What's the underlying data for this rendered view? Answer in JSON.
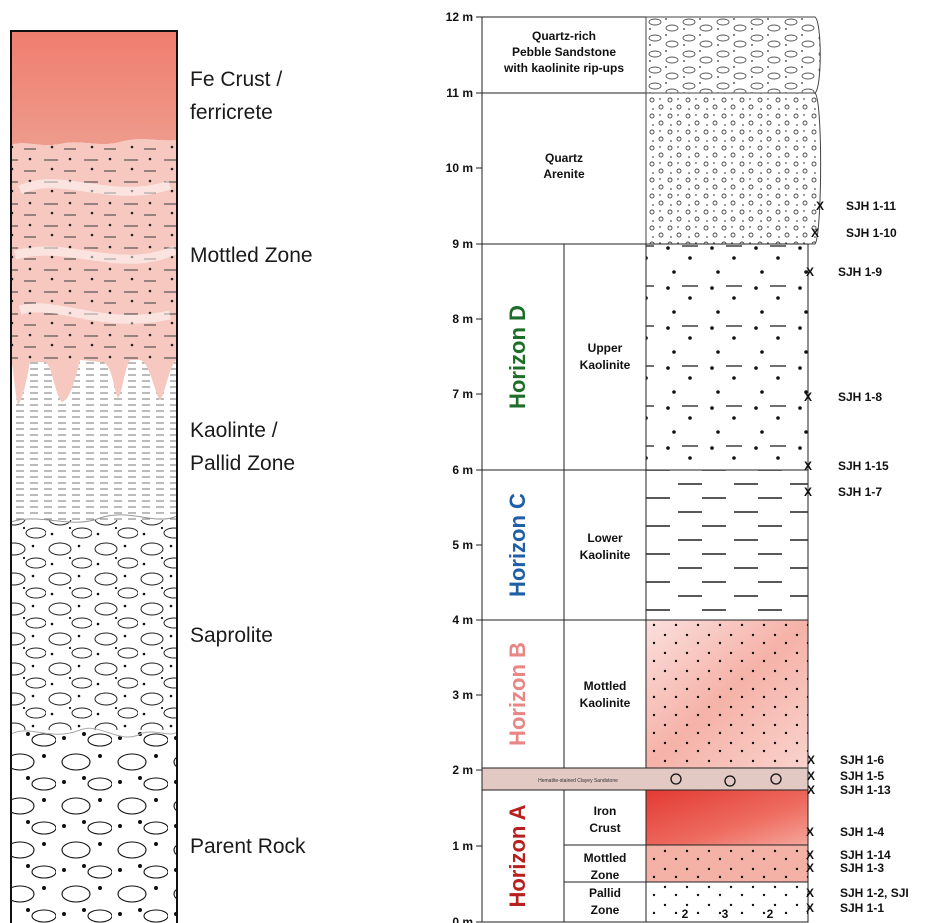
{
  "profile": {
    "zones": [
      {
        "label": "Fe Crust /\nferricrete"
      },
      {
        "label": "Mottled Zone"
      },
      {
        "label": "Kaolinte /\nPallid Zone"
      },
      {
        "label": "Saprolite"
      },
      {
        "label": "Parent Rock"
      }
    ]
  },
  "column": {
    "depth_ticks": [
      "0 m",
      "1 m",
      "2 m",
      "3 m",
      "4 m",
      "5 m",
      "6 m",
      "7 m",
      "8 m",
      "9 m",
      "10 m",
      "11 m",
      "12 m"
    ],
    "top_units": [
      {
        "label": "Quartz-rich\nPebble Sandstone\nwith kaolinite rip-ups"
      },
      {
        "label": "Quartz\nArenite"
      }
    ],
    "horizons": [
      {
        "label": "Horizon D",
        "color": "#1e6e2a"
      },
      {
        "label": "Horizon C",
        "color": "#1f5fa8"
      },
      {
        "label": "Horizon B",
        "color": "#e88585"
      },
      {
        "label": "Horizon A",
        "color": "#b81f1f"
      }
    ],
    "units": [
      {
        "label": "Upper\nKaolinite"
      },
      {
        "label": "Lower\nKaolinite"
      },
      {
        "label": "Mottled\nKaolinite"
      },
      {
        "label": "Hematite-stained Clayey Sandstone"
      },
      {
        "label": "Iron\nCrust"
      },
      {
        "label": "Mottled\nZone"
      },
      {
        "label": "Pallid\nZone"
      }
    ],
    "samples": [
      {
        "label": "SJH 1-11"
      },
      {
        "label": "SJH 1-10"
      },
      {
        "label": "SJH 1-9"
      },
      {
        "label": "SJH 1-8"
      },
      {
        "label": "SJH 1-15"
      },
      {
        "label": "SJH 1-7"
      },
      {
        "label": "SJH 1-6"
      },
      {
        "label": "SJH 1-5"
      },
      {
        "label": "SJH 1-13"
      },
      {
        "label": "SJH 1-4"
      },
      {
        "label": "SJH 1-14"
      },
      {
        "label": "SJH 1-3"
      },
      {
        "label": "SJH 1-2,  SJI"
      },
      {
        "label": "SJH 1-1"
      }
    ],
    "sample_marker": "X",
    "pallid_markers": [
      "2",
      "3",
      "2"
    ]
  }
}
